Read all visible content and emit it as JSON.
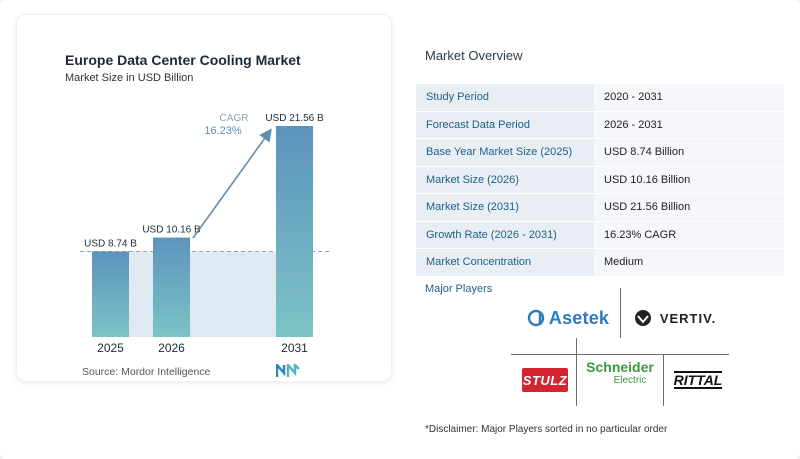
{
  "chart": {
    "title": "Europe Data Center Cooling Market",
    "subtitle": "Market Size in USD Billion",
    "source": "Source:  Mordor Intelligence",
    "cagr_label": "CAGR",
    "cagr_value": "16.23%"
  },
  "chart_data": {
    "type": "bar",
    "categories": [
      "2025",
      "2026",
      "2031"
    ],
    "values": [
      8.74,
      10.16,
      21.56
    ],
    "data_labels": [
      "USD 8.74 B",
      "USD 10.16 B",
      "USD 21.56 B"
    ],
    "title": "Europe Data Center Cooling Market",
    "subtitle": "Market Size in USD Billion",
    "xlabel": "",
    "ylabel": "",
    "grid": false,
    "colors": {
      "bar_top": "#5d93bd",
      "bar_bottom": "#7cc3c6",
      "reference_band": "#dfe9f2",
      "arrow": "#5f8db4"
    }
  },
  "overview": {
    "title": "Market Overview",
    "rows": [
      {
        "key": "Study Period",
        "value": "2020 - 2031"
      },
      {
        "key": "Forecast Data Period",
        "value": "2026 - 2031"
      },
      {
        "key": "Base Year Market Size (2025)",
        "value": "USD 8.74 Billion"
      },
      {
        "key": "Market Size (2026)",
        "value": "USD 10.16 Billion"
      },
      {
        "key": "Market Size (2031)",
        "value": "USD 21.56 Billion"
      },
      {
        "key": "Growth Rate (2026 - 2031)",
        "value": "16.23% CAGR"
      },
      {
        "key": "Market Concentration",
        "value": "Medium"
      }
    ]
  },
  "players": {
    "title": "Major Players",
    "asetek": "Asetek",
    "vertiv": "VERTIV.",
    "stulz": "STULZ",
    "schneider_1": "Schneider",
    "schneider_2": "Electric",
    "rittal": "RITTAL"
  },
  "disclaimer": "*Disclaimer: Major Players sorted in no particular order"
}
